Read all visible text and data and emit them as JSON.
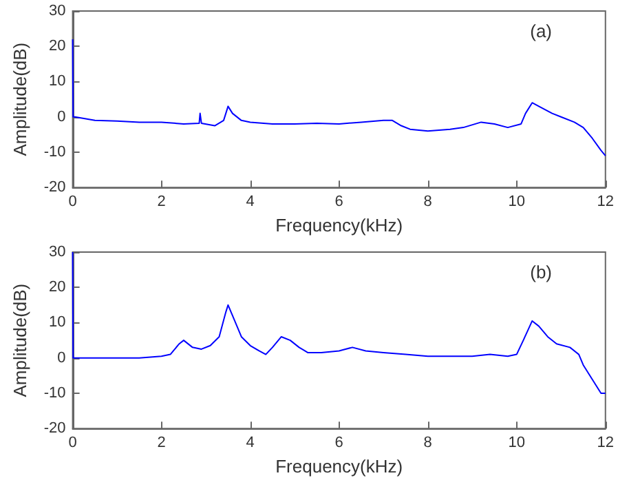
{
  "chart_data": [
    {
      "type": "line",
      "xlabel": "Frequency(kHz)",
      "ylabel": "Amplitude(dB)",
      "annotations": [
        "(a)"
      ],
      "xlim": [
        0,
        12
      ],
      "ylim": [
        -20,
        30
      ],
      "xticks": [
        0,
        2,
        4,
        6,
        8,
        10,
        12
      ],
      "yticks": [
        -20,
        -10,
        0,
        10,
        20,
        30
      ],
      "grid": false,
      "marker": "none",
      "line_style": "solid",
      "x": [
        0,
        0.01,
        0.05,
        0.5,
        1,
        1.5,
        2,
        2.5,
        2.85,
        2.87,
        2.9,
        3.2,
        3.4,
        3.5,
        3.6,
        3.8,
        4,
        4.5,
        5,
        5.5,
        6,
        6.5,
        7,
        7.2,
        7.4,
        7.6,
        8,
        8.5,
        8.8,
        9.2,
        9.5,
        9.8,
        10.1,
        10.2,
        10.35,
        10.5,
        10.8,
        11,
        11.3,
        11.5,
        11.7,
        11.9,
        12
      ],
      "series": [
        {
          "color": "#0000ff",
          "values": [
            22,
            0,
            0,
            -1,
            -1.2,
            -1.5,
            -1.5,
            -2,
            -1.8,
            1,
            -1.8,
            -2.5,
            -1,
            3,
            1,
            -1,
            -1.5,
            -2,
            -2,
            -1.8,
            -2,
            -1.5,
            -1,
            -1,
            -2.5,
            -3.5,
            -4,
            -3.5,
            -3,
            -1.5,
            -2,
            -3,
            -2,
            1,
            4,
            3,
            1,
            0,
            -1.5,
            -3,
            -6,
            -9.5,
            -11
          ]
        }
      ]
    },
    {
      "type": "line",
      "xlabel": "Frequency(kHz)",
      "ylabel": "Amplitude(dB)",
      "annotations": [
        "(b)"
      ],
      "xlim": [
        0,
        12
      ],
      "ylim": [
        -20,
        30
      ],
      "xticks": [
        0,
        2,
        4,
        6,
        8,
        10,
        12
      ],
      "yticks": [
        -20,
        -10,
        0,
        10,
        20,
        30
      ],
      "grid": false,
      "marker": "none",
      "line_style": "solid",
      "x": [
        0,
        0.01,
        0.5,
        1,
        1.5,
        2,
        2.2,
        2.4,
        2.5,
        2.7,
        2.9,
        3.1,
        3.3,
        3.45,
        3.5,
        3.6,
        3.8,
        4,
        4.2,
        4.35,
        4.5,
        4.7,
        4.9,
        5.1,
        5.3,
        5.6,
        6,
        6.3,
        6.6,
        7,
        7.5,
        8,
        8.5,
        9,
        9.4,
        9.8,
        10,
        10.15,
        10.35,
        10.5,
        10.7,
        10.9,
        11.2,
        11.4,
        11.5,
        11.7,
        11.9,
        12
      ],
      "series": [
        {
          "color": "#0000ff",
          "values": [
            30,
            0,
            0,
            0,
            0,
            0.5,
            1,
            4,
            5,
            3,
            2.5,
            3.5,
            6,
            13,
            15,
            12,
            6,
            3.5,
            2,
            1,
            3,
            6,
            5,
            3,
            1.5,
            1.5,
            2,
            3,
            2,
            1.5,
            1,
            0.5,
            0.5,
            0.5,
            1,
            0.5,
            1,
            5,
            10.5,
            9,
            6,
            4,
            3,
            1,
            -2,
            -6,
            -10,
            -10
          ]
        }
      ]
    }
  ]
}
